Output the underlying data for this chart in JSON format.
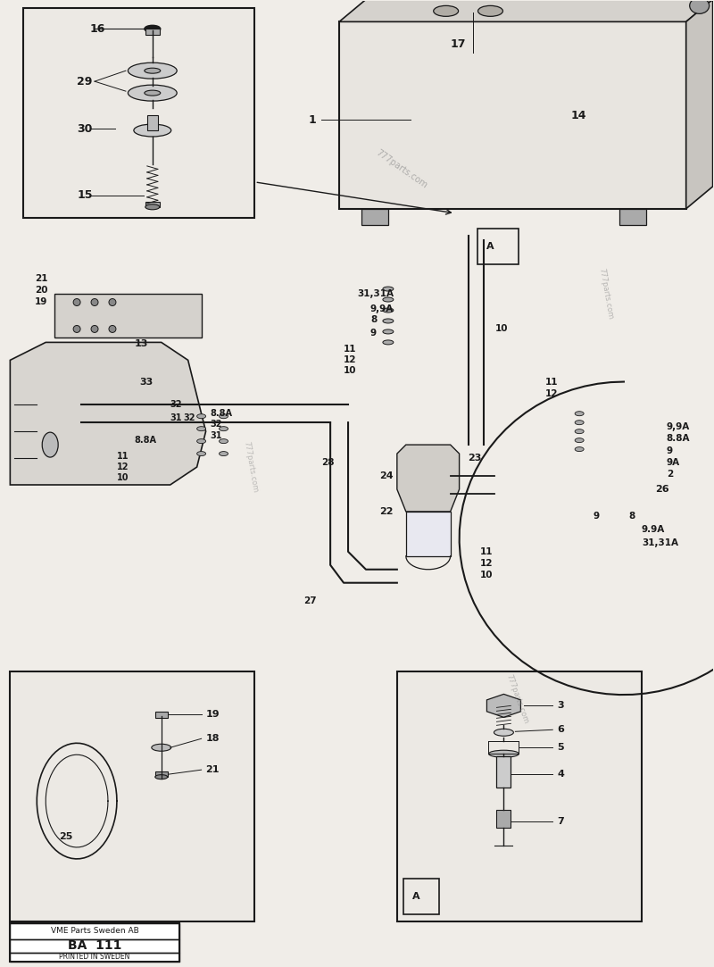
{
  "title": "VME Parts Sweden AB - BA 111",
  "bg_color": "#f0ede8",
  "line_color": "#1a1a1a",
  "fig_width": 8.0,
  "fig_height": 10.83,
  "dpi": 100,
  "footer_text1": "VME Parts Sweden AB",
  "footer_text2": "BA  111",
  "footer_text3": "PRINTED IN SWEDEN"
}
